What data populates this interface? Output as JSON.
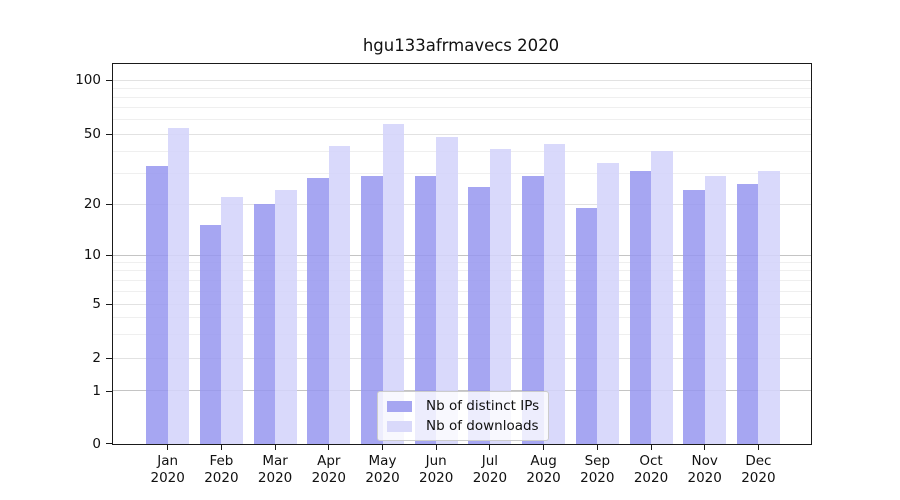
{
  "chart_data": {
    "type": "bar",
    "title": "hgu133afrmavecs 2020",
    "categories": [
      "Jan",
      "Feb",
      "Mar",
      "Apr",
      "May",
      "Jun",
      "Jul",
      "Aug",
      "Sep",
      "Oct",
      "Nov",
      "Dec"
    ],
    "xtick_year": "2020",
    "series": [
      {
        "name": "Nb of distinct IPs",
        "color": "rgba(150,150,240,0.85)",
        "legend_color": "#a6a6f1",
        "values": [
          33,
          15,
          20,
          28,
          29,
          29,
          25,
          29,
          19,
          31,
          24,
          26
        ]
      },
      {
        "name": "Nb of downloads",
        "color": "rgba(212,212,250,0.88)",
        "legend_color": "#d9d9fa",
        "values": [
          54,
          22,
          24,
          43,
          57,
          48,
          41,
          44,
          34,
          40,
          29,
          31
        ]
      }
    ],
    "yscale": "symlog",
    "ylim": [
      0,
      125
    ],
    "yticks": [
      100,
      50,
      20,
      10,
      5,
      2,
      1,
      0
    ],
    "yticks_minor": [
      3,
      4,
      6,
      7,
      8,
      9,
      30,
      40,
      60,
      70,
      80,
      90
    ],
    "grid": "horizontal major+minor",
    "legend_position": "lower center inside plot"
  }
}
